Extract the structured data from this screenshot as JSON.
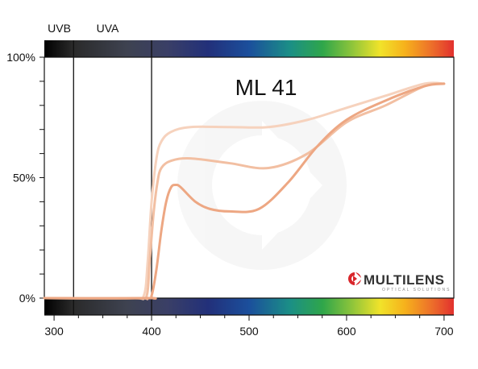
{
  "chart_data": {
    "type": "line",
    "title": "ML 41",
    "xlabel": "",
    "ylabel": "",
    "xlim": [
      290,
      710
    ],
    "ylim": [
      0,
      100
    ],
    "x_ticks": [
      300,
      400,
      500,
      600,
      700
    ],
    "y_ticks": [
      {
        "value": 0,
        "label": "0%"
      },
      {
        "value": 50,
        "label": "50%"
      },
      {
        "value": 100,
        "label": "100%"
      }
    ],
    "band_labels": [
      {
        "label": "UVB",
        "x": 305
      },
      {
        "label": "UVA",
        "x": 355
      }
    ],
    "vertical_lines": [
      320,
      400
    ],
    "grid": false,
    "series": [
      {
        "color": "#f6d2bd",
        "x": [
          290,
          380,
          392,
          396,
          400,
          405,
          410,
          420,
          440,
          480,
          520,
          560,
          600,
          640,
          680,
          700
        ],
        "y": [
          0,
          0,
          1,
          15,
          40,
          58,
          65,
          69,
          71,
          71,
          71,
          74,
          79,
          84,
          89,
          89
        ]
      },
      {
        "color": "#f2bfa2",
        "x": [
          290,
          385,
          395,
          398,
          402,
          406,
          410,
          420,
          440,
          480,
          520,
          560,
          600,
          640,
          680,
          700
        ],
        "y": [
          0,
          0,
          1,
          15,
          35,
          48,
          54,
          57,
          58,
          56,
          54,
          60,
          73,
          80,
          88,
          89
        ]
      },
      {
        "color": "#eda783",
        "x": [
          290,
          395,
          400,
          405,
          410,
          415,
          420,
          425,
          430,
          445,
          460,
          480,
          510,
          540,
          570,
          600,
          640,
          680,
          700
        ],
        "y": [
          0,
          0,
          1,
          12,
          28,
          40,
          46,
          47,
          46,
          40,
          37,
          36,
          37,
          48,
          63,
          74,
          82,
          88,
          89
        ]
      }
    ]
  },
  "logo": {
    "name": "MULTILENS",
    "tagline": "OPTICAL SOLUTIONS"
  }
}
